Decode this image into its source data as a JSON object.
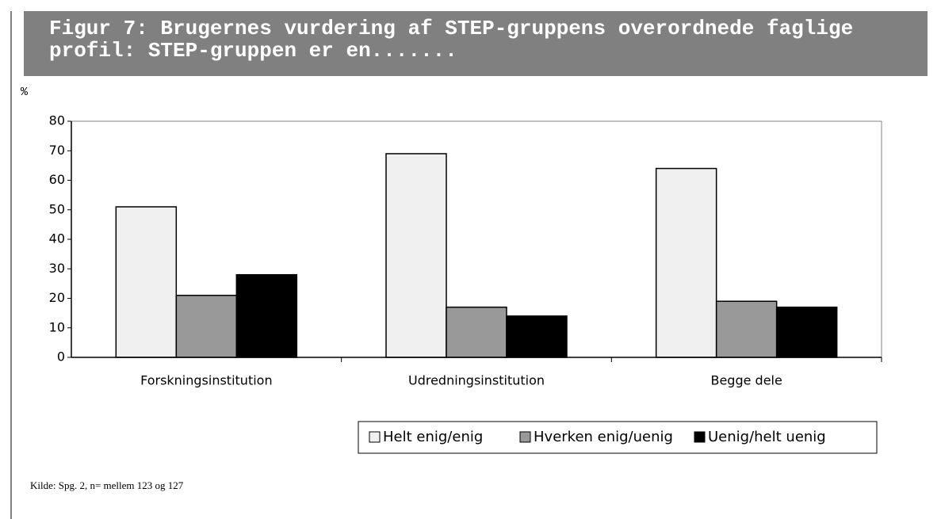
{
  "chart_data": {
    "type": "bar",
    "title": "Figur 7: Brugernes vurdering af STEP-gruppens overordnede faglige profil: STEP-gruppen er en.......",
    "y_label": "%",
    "categories": [
      "Forskningsinstitution",
      "Udredningsinstitution",
      "Begge dele"
    ],
    "series": [
      {
        "name": "Helt enig/enig",
        "color": "#f0f0f0",
        "values": [
          51,
          69,
          64
        ]
      },
      {
        "name": "Hverken enig/uenig",
        "color": "#999999",
        "values": [
          21,
          17,
          19
        ]
      },
      {
        "name": "Uenig/helt uenig",
        "color": "#000000",
        "values": [
          28,
          14,
          17
        ]
      }
    ],
    "ylim": [
      0,
      80
    ],
    "yticks": [
      0,
      10,
      20,
      30,
      40,
      50,
      60,
      70,
      80
    ],
    "legend": "bottom",
    "source": "Kilde: Spg. 2, n= mellem 123 og 127"
  }
}
